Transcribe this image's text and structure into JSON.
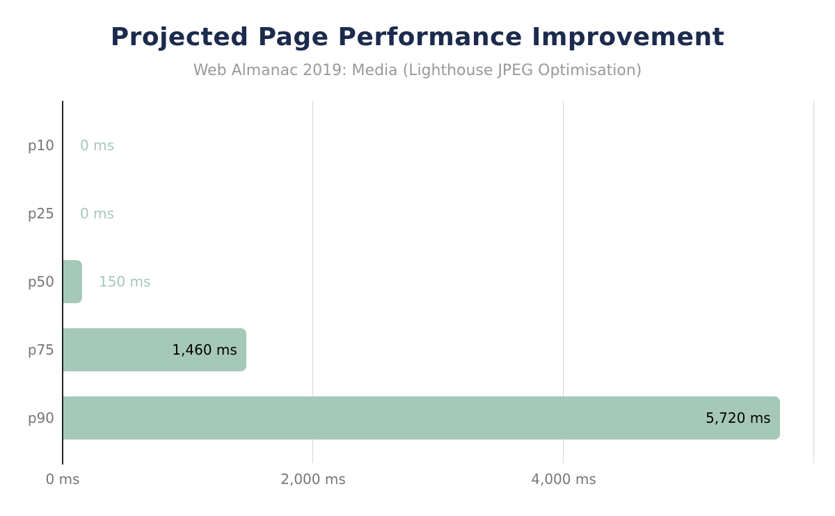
{
  "title": "Projected Page Performance Improvement",
  "subtitle": "Web Almanac 2019: Media (Lighthouse JPEG Optimisation)",
  "colors": {
    "title": "#1c2b4d",
    "subtitle": "#999999",
    "bar": "#a6c8b8",
    "bar_label_inside": "#000000",
    "bar_label_outside": "#a6c8b8",
    "axis_text": "#757575",
    "gridline": "#d4d4d4",
    "axis_line": "#212121",
    "background": "#ffffff"
  },
  "chart_data": {
    "type": "bar",
    "orientation": "horizontal",
    "title": "Projected Page Performance Improvement",
    "subtitle": "Web Almanac 2019: Media (Lighthouse JPEG Optimisation)",
    "categories": [
      "p10",
      "p25",
      "p50",
      "p75",
      "p90"
    ],
    "values": [
      0,
      0,
      150,
      1460,
      5720
    ],
    "value_labels": [
      "0 ms",
      "0 ms",
      "150 ms",
      "1,460 ms",
      "5,720 ms"
    ],
    "label_inside": [
      false,
      false,
      false,
      true,
      true
    ],
    "xlabel": "",
    "ylabel": "",
    "xlim": [
      0,
      6000
    ],
    "x_ticks": [
      {
        "value": 0,
        "label": "0 ms"
      },
      {
        "value": 2000,
        "label": "2,000 ms"
      },
      {
        "value": 4000,
        "label": "4,000 ms"
      }
    ],
    "gridline_values": [
      2000,
      4000,
      6000
    ],
    "grid": true,
    "legend": false
  }
}
